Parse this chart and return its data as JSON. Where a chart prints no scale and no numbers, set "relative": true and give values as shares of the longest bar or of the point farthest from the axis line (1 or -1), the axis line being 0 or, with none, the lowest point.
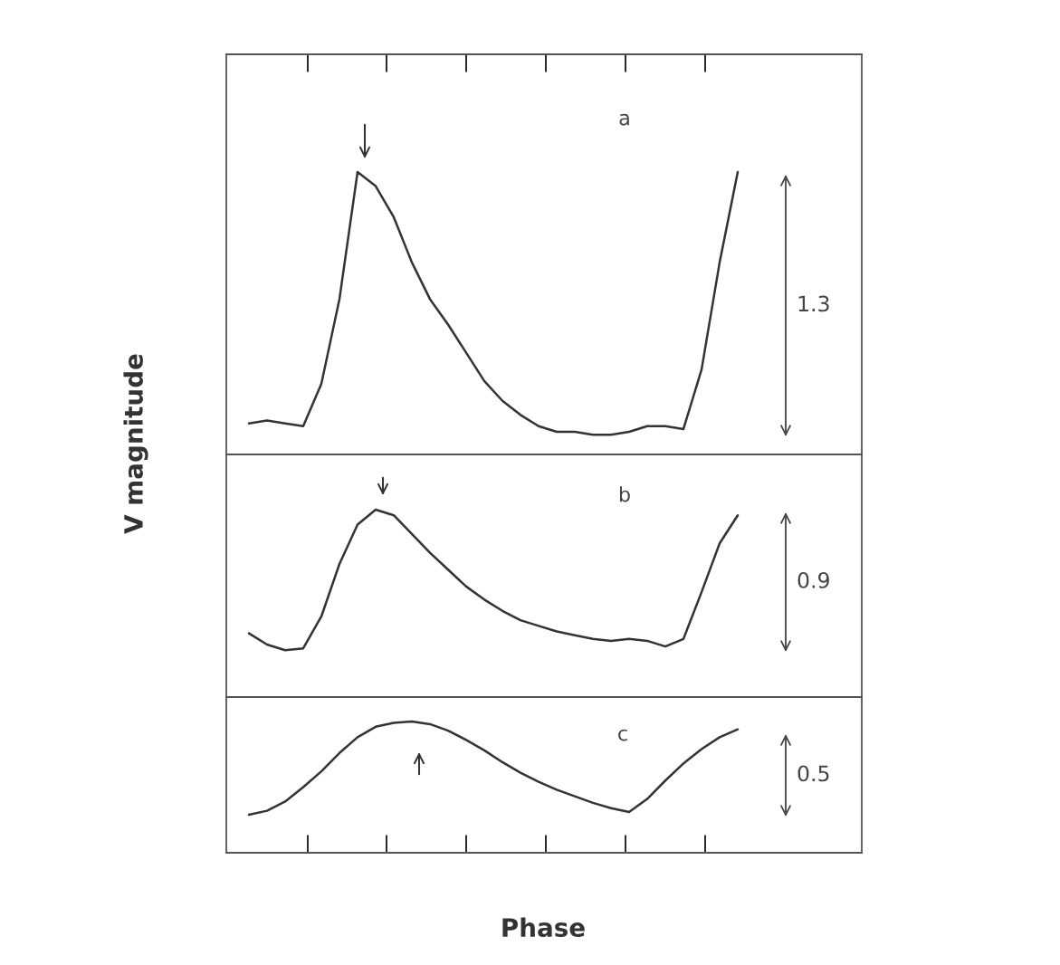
{
  "chart_data": [
    {
      "type": "line",
      "relative": true,
      "tick_labels": false,
      "categories": [
        null,
        null,
        null,
        null,
        null,
        null,
        null,
        null,
        null,
        null,
        null,
        null,
        null,
        null,
        null,
        null,
        null,
        null,
        null,
        null,
        null,
        null,
        null,
        null,
        null,
        null,
        null,
        null
      ],
      "series": [
        {
          "color": "#333333",
          "values": [
            0.11,
            0.12,
            0.11,
            0.1,
            0.25,
            0.55,
            1.0,
            0.95,
            0.84,
            0.68,
            0.55,
            0.46,
            0.36,
            0.26,
            0.19,
            0.14,
            0.1,
            0.08,
            0.08,
            0.07,
            0.07,
            0.08,
            0.1,
            0.1,
            0.09,
            0.3,
            0.68,
            1.0
          ]
        }
      ],
      "annotations": [
        "a",
        "1.3"
      ],
      "grid": false,
      "legend": false
    },
    {
      "type": "line",
      "relative": true,
      "tick_labels": false,
      "ylabel": "V magnitude",
      "categories": [
        null,
        null,
        null,
        null,
        null,
        null,
        null,
        null,
        null,
        null,
        null,
        null,
        null,
        null,
        null,
        null,
        null,
        null,
        null,
        null,
        null,
        null,
        null,
        null,
        null,
        null,
        null,
        null
      ],
      "series": [
        {
          "color": "#333333",
          "values": [
            0.34,
            0.28,
            0.25,
            0.26,
            0.43,
            0.71,
            0.92,
            1.0,
            0.97,
            0.87,
            0.77,
            0.68,
            0.59,
            0.52,
            0.46,
            0.41,
            0.38,
            0.35,
            0.33,
            0.31,
            0.3,
            0.31,
            0.3,
            0.27,
            0.31,
            0.56,
            0.82,
            0.97
          ]
        }
      ],
      "annotations": [
        "b",
        "0.9"
      ],
      "grid": false,
      "legend": false
    },
    {
      "type": "line",
      "relative": true,
      "tick_labels": false,
      "xlabel": "Phase",
      "categories": [
        null,
        null,
        null,
        null,
        null,
        null,
        null,
        null,
        null,
        null,
        null,
        null,
        null,
        null,
        null,
        null,
        null,
        null,
        null,
        null,
        null,
        null,
        null,
        null,
        null,
        null,
        null,
        null
      ],
      "series": [
        {
          "color": "#333333",
          "values": [
            0.29,
            0.32,
            0.39,
            0.5,
            0.62,
            0.76,
            0.88,
            0.96,
            0.99,
            1.0,
            0.98,
            0.93,
            0.86,
            0.78,
            0.69,
            0.61,
            0.54,
            0.48,
            0.43,
            0.38,
            0.34,
            0.31,
            0.41,
            0.55,
            0.68,
            0.79,
            0.88,
            0.94
          ]
        }
      ],
      "annotations": [
        "c",
        "0.5"
      ],
      "grid": false,
      "legend": false
    }
  ]
}
